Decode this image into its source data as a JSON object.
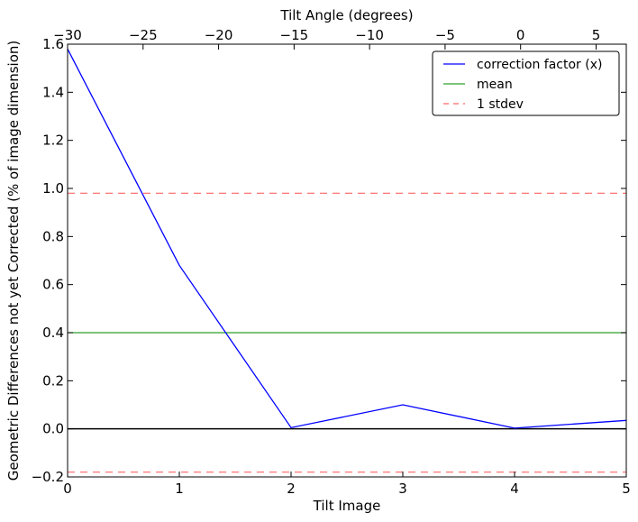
{
  "chart_data": {
    "type": "line",
    "xlabel": "Tilt Image",
    "ylabel": "Geometric Differences not yet Corrected (% of image dimension)",
    "top_xlabel": "Tilt Angle (degrees)",
    "xlim": [
      0,
      5
    ],
    "ylim": [
      -0.2,
      1.6
    ],
    "top_xlim": [
      -30,
      7
    ],
    "x_ticks": [
      0,
      1,
      2,
      3,
      4,
      5
    ],
    "x_tick_labels": [
      "0",
      "1",
      "2",
      "3",
      "4",
      "5"
    ],
    "y_ticks": [
      -0.2,
      0.0,
      0.2,
      0.4,
      0.6,
      0.8,
      1.0,
      1.2,
      1.4,
      1.6
    ],
    "y_tick_labels": [
      "−0.2",
      "0.0",
      "0.2",
      "0.4",
      "0.6",
      "0.8",
      "1.0",
      "1.2",
      "1.4",
      "1.6"
    ],
    "top_ticks": [
      -30,
      -25,
      -20,
      -15,
      -10,
      -5,
      0,
      5
    ],
    "top_tick_labels": [
      "−30",
      "−25",
      "−20",
      "−15",
      "−10",
      "−5",
      "0",
      "5"
    ],
    "x": [
      0,
      1,
      2,
      3,
      4,
      5
    ],
    "series": [
      {
        "name": "correction factor (x)",
        "values": [
          1.58,
          0.68,
          0.005,
          0.1,
          0.003,
          0.035
        ],
        "color": "#0000ff",
        "style": "solid"
      }
    ],
    "hlines": [
      {
        "name": "mean",
        "value": 0.4,
        "color": "#2ca02c",
        "style": "solid"
      },
      {
        "name": "1 stdev",
        "value": 0.98,
        "color": "#ff6666",
        "style": "dashed"
      },
      {
        "name": "",
        "value": -0.18,
        "color": "#ff6666",
        "style": "dashed"
      },
      {
        "name": "",
        "value": 0.0,
        "color": "#000000",
        "style": "solid"
      }
    ],
    "legend": {
      "placement": "top-right",
      "entries": [
        "correction factor (x)",
        "mean",
        "1 stdev"
      ]
    },
    "grid": false
  }
}
